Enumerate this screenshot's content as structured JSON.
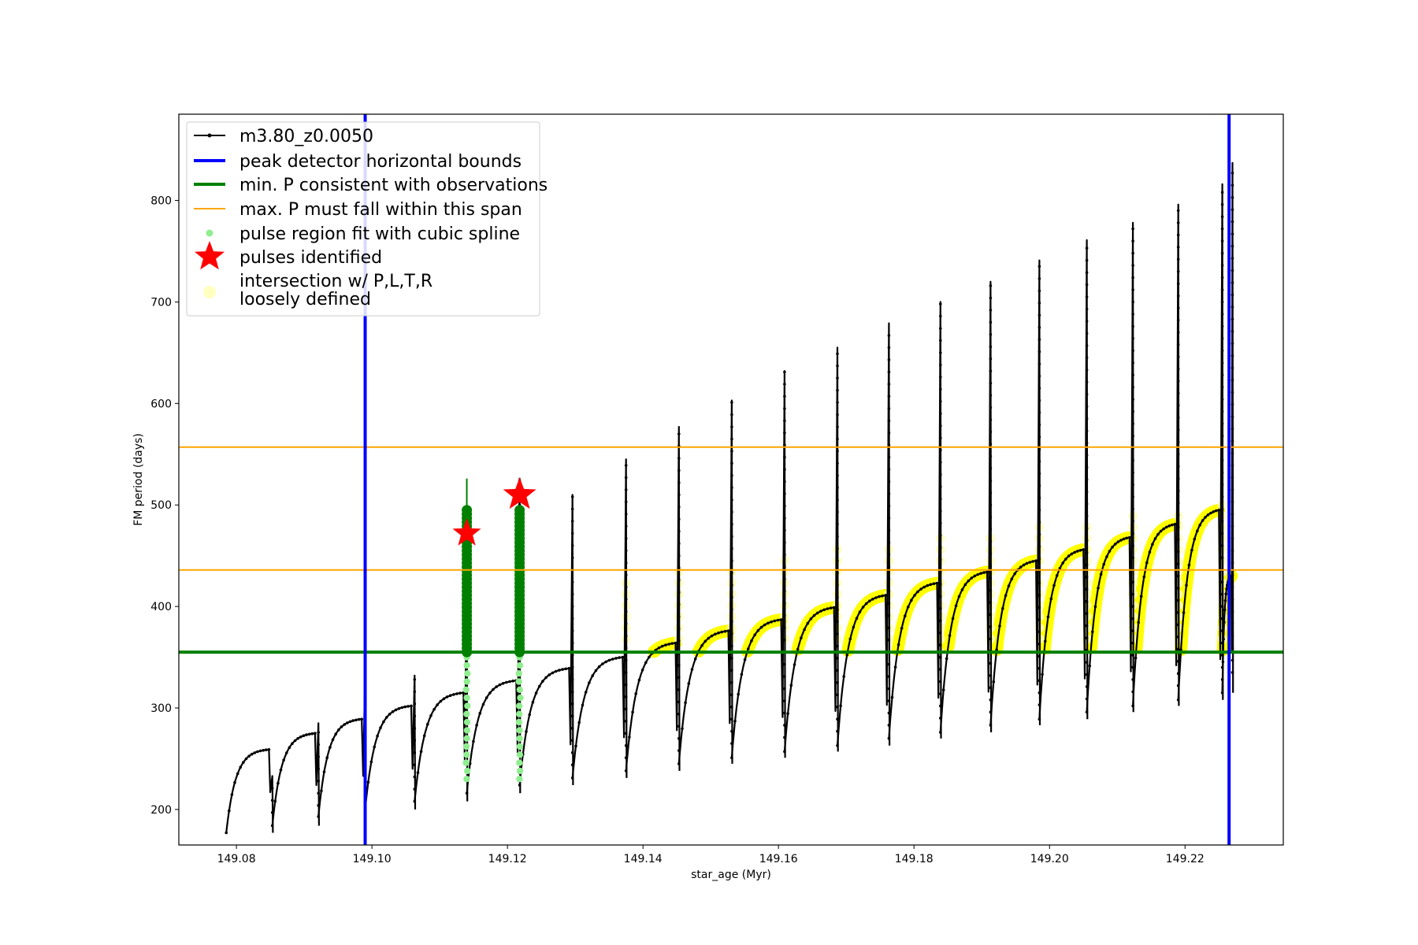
{
  "chart_data": {
    "type": "scatter",
    "title": "",
    "xlabel": "star_age (Myr)",
    "ylabel": "FM period (days)",
    "xlim": [
      149.0715,
      149.2345
    ],
    "ylim": [
      165,
      885
    ],
    "xticks": [
      149.08,
      149.1,
      149.12,
      149.14,
      149.16,
      149.18,
      149.2,
      149.22
    ],
    "xtick_labels": [
      "149.08",
      "149.10",
      "149.12",
      "149.14",
      "149.16",
      "149.18",
      "149.20",
      "149.22"
    ],
    "yticks": [
      200,
      300,
      400,
      500,
      600,
      700,
      800
    ],
    "ytick_labels": [
      "200",
      "300",
      "400",
      "500",
      "600",
      "700",
      "800"
    ],
    "grid": false,
    "legend_position": "top-left",
    "colors": {
      "track": "#000000",
      "bounds": "#0000ff",
      "min_p": "#008000",
      "max_p": "#ffa500",
      "pulse_fit": "#90ee90",
      "pulse_fit_dark": "#008000",
      "pulses": "#ff0000",
      "intersect": "#ffff00",
      "loose": "#ffffc0"
    },
    "legend": [
      {
        "label": "m3.80_z0.0050",
        "kind": "line-marker"
      },
      {
        "label": "peak detector horizontal bounds",
        "kind": "line-blue"
      },
      {
        "label": "min. P consistent with observations",
        "kind": "line-green"
      },
      {
        "label": "max. P must fall within this span",
        "kind": "line-orange"
      },
      {
        "label": "pulse region fit with cubic spline",
        "kind": "dot-lightgreen"
      },
      {
        "label": "pulses identified",
        "kind": "star-red"
      },
      {
        "label": "intersection w/ P,L,T,R",
        "kind": "none"
      },
      {
        "label": "loosely defined",
        "kind": "dot-loose"
      }
    ],
    "bounds_x": [
      149.099,
      149.2265
    ],
    "min_p": 355,
    "max_p_span": [
      436,
      557
    ],
    "cycles": [
      {
        "start": 149.0785,
        "end": 149.0853,
        "min": 177,
        "plateau": 259,
        "peak": 233
      },
      {
        "start": 149.0853,
        "end": 149.0921,
        "min": 184,
        "plateau": 275,
        "peak": 285
      },
      {
        "start": 149.0921,
        "end": 149.099,
        "min": 193,
        "plateau": 289,
        "peak": 337
      },
      {
        "start": 149.099,
        "end": 149.1063,
        "min": 200,
        "plateau": 302,
        "peak": 332
      },
      {
        "start": 149.1063,
        "end": 149.114,
        "min": 208,
        "plateau": 315,
        "peak": 432
      },
      {
        "start": 149.114,
        "end": 149.1218,
        "min": 216,
        "plateau": 327,
        "peak": 526
      },
      {
        "start": 149.1218,
        "end": 149.1296,
        "min": 224,
        "plateau": 339,
        "peak": 510
      },
      {
        "start": 149.1296,
        "end": 149.1375,
        "min": 231,
        "plateau": 350,
        "peak": 545
      },
      {
        "start": 149.1375,
        "end": 149.1453,
        "min": 238,
        "plateau": 364,
        "peak": 577
      },
      {
        "start": 149.1453,
        "end": 149.1531,
        "min": 245,
        "plateau": 376,
        "peak": 603
      },
      {
        "start": 149.1531,
        "end": 149.1609,
        "min": 251,
        "plateau": 387,
        "peak": 632
      },
      {
        "start": 149.1609,
        "end": 149.1687,
        "min": 257,
        "plateau": 399,
        "peak": 655
      },
      {
        "start": 149.1687,
        "end": 149.1763,
        "min": 263,
        "plateau": 411,
        "peak": 679
      },
      {
        "start": 149.1763,
        "end": 149.1839,
        "min": 270,
        "plateau": 423,
        "peak": 700
      },
      {
        "start": 149.1839,
        "end": 149.1913,
        "min": 276,
        "plateau": 434,
        "peak": 720
      },
      {
        "start": 149.1913,
        "end": 149.1985,
        "min": 283,
        "plateau": 445,
        "peak": 741
      },
      {
        "start": 149.1985,
        "end": 149.2055,
        "min": 289,
        "plateau": 456,
        "peak": 761
      },
      {
        "start": 149.2055,
        "end": 149.2123,
        "min": 296,
        "plateau": 468,
        "peak": 778
      },
      {
        "start": 149.2123,
        "end": 149.219,
        "min": 302,
        "plateau": 481,
        "peak": 796
      },
      {
        "start": 149.219,
        "end": 149.2255,
        "min": 308,
        "plateau": 495,
        "peak": 816
      },
      {
        "start": 149.2255,
        "end": 149.227,
        "min": 315,
        "plateau": 430,
        "peak": 837
      }
    ],
    "pulses": [
      {
        "x": 149.114,
        "y": 472,
        "size": "small"
      },
      {
        "x": 149.1218,
        "y": 510,
        "size": "large"
      }
    ]
  }
}
